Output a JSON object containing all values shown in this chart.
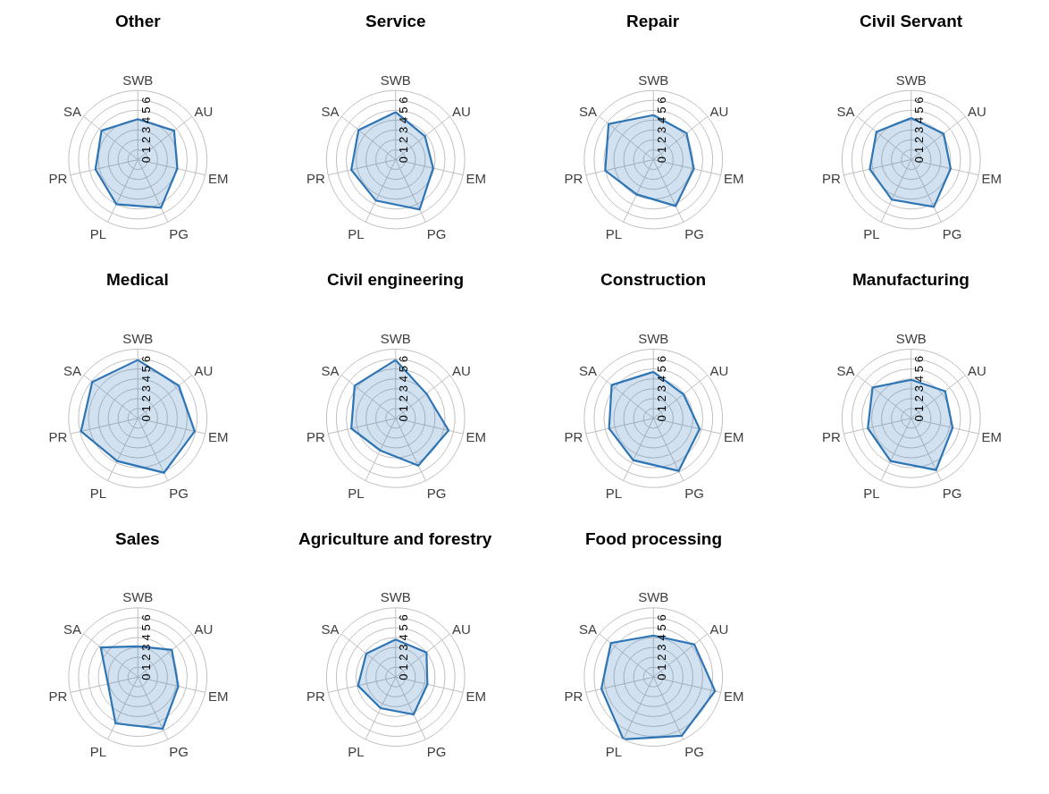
{
  "chart_data": [
    {
      "type": "radar",
      "title": "Other",
      "categories": [
        "SWB",
        "AU",
        "EM",
        "PG",
        "PL",
        "PR",
        "SA"
      ],
      "series": [
        {
          "color": "#2e75b6",
          "values": [
            4.1,
            4.7,
            4.1,
            5.4,
            5.0,
            4.4,
            4.7
          ]
        }
      ],
      "ylim": [
        0,
        7
      ],
      "yticks": [
        0,
        1,
        2,
        3,
        4,
        5,
        6
      ],
      "grid": true
    },
    {
      "type": "radar",
      "title": "Service",
      "categories": [
        "SWB",
        "AU",
        "EM",
        "PG",
        "PL",
        "PR",
        "SA"
      ],
      "series": [
        {
          "color": "#2e75b6",
          "values": [
            4.8,
            3.8,
            3.9,
            5.6,
            4.6,
            4.6,
            4.8
          ]
        }
      ],
      "ylim": [
        0,
        7
      ],
      "yticks": [
        0,
        1,
        2,
        3,
        4,
        5,
        6
      ],
      "grid": true
    },
    {
      "type": "radar",
      "title": "Repair",
      "categories": [
        "SWB",
        "AU",
        "EM",
        "PG",
        "PL",
        "PR",
        "SA"
      ],
      "series": [
        {
          "color": "#2e75b6",
          "values": [
            4.5,
            4.3,
            4.2,
            5.2,
            3.9,
            5.0,
            5.8
          ]
        }
      ],
      "ylim": [
        0,
        7
      ],
      "yticks": [
        0,
        1,
        2,
        3,
        4,
        5,
        6
      ],
      "grid": true
    },
    {
      "type": "radar",
      "title": "Civil Servant",
      "categories": [
        "SWB",
        "AU",
        "EM",
        "PG",
        "PL",
        "PR",
        "SA"
      ],
      "series": [
        {
          "color": "#2e75b6",
          "values": [
            4.2,
            4.2,
            4.1,
            5.3,
            4.5,
            4.3,
            4.5
          ]
        }
      ],
      "ylim": [
        0,
        7
      ],
      "yticks": [
        0,
        1,
        2,
        3,
        4,
        5,
        6
      ],
      "grid": true
    },
    {
      "type": "radar",
      "title": "Medical",
      "categories": [
        "SWB",
        "AU",
        "EM",
        "PG",
        "PL",
        "PR",
        "SA"
      ],
      "series": [
        {
          "color": "#2e75b6",
          "values": [
            5.9,
            5.3,
            5.9,
            6.1,
            4.8,
            5.9,
            5.9
          ]
        }
      ],
      "ylim": [
        0,
        7
      ],
      "yticks": [
        0,
        1,
        2,
        3,
        4,
        5,
        6
      ],
      "grid": true
    },
    {
      "type": "radar",
      "title": "Civil engineering",
      "categories": [
        "SWB",
        "AU",
        "EM",
        "PG",
        "PL",
        "PR",
        "SA"
      ],
      "series": [
        {
          "color": "#2e75b6",
          "values": [
            5.9,
            4.0,
            5.5,
            5.3,
            3.6,
            4.6,
            5.3
          ]
        }
      ],
      "ylim": [
        0,
        7
      ],
      "yticks": [
        0,
        1,
        2,
        3,
        4,
        5,
        6
      ],
      "grid": true
    },
    {
      "type": "radar",
      "title": "Construction",
      "categories": [
        "SWB",
        "AU",
        "EM",
        "PG",
        "PL",
        "PR",
        "SA"
      ],
      "series": [
        {
          "color": "#2e75b6",
          "values": [
            4.7,
            3.9,
            4.8,
            5.9,
            4.7,
            4.6,
            5.4
          ]
        }
      ],
      "ylim": [
        0,
        7
      ],
      "yticks": [
        0,
        1,
        2,
        3,
        4,
        5,
        6
      ],
      "grid": true
    },
    {
      "type": "radar",
      "title": "Manufacturing",
      "categories": [
        "SWB",
        "AU",
        "EM",
        "PG",
        "PL",
        "PR",
        "SA"
      ],
      "series": [
        {
          "color": "#2e75b6",
          "values": [
            3.9,
            4.4,
            4.3,
            5.8,
            4.8,
            4.5,
            5.0
          ]
        }
      ],
      "ylim": [
        0,
        7
      ],
      "yticks": [
        0,
        1,
        2,
        3,
        4,
        5,
        6
      ],
      "grid": true
    },
    {
      "type": "radar",
      "title": "Sales",
      "categories": [
        "SWB",
        "AU",
        "EM",
        "PG",
        "PL",
        "PR",
        "SA"
      ],
      "series": [
        {
          "color": "#2e75b6",
          "values": [
            3.1,
            4.4,
            4.2,
            5.8,
            5.2,
            3.1,
            4.8
          ]
        }
      ],
      "ylim": [
        0,
        7
      ],
      "yticks": [
        0,
        1,
        2,
        3,
        4,
        5,
        6
      ],
      "grid": true
    },
    {
      "type": "radar",
      "title": "Agriculture and forestry",
      "categories": [
        "SWB",
        "AU",
        "EM",
        "PG",
        "PL",
        "PR",
        "SA"
      ],
      "series": [
        {
          "color": "#2e75b6",
          "values": [
            3.8,
            4.0,
            3.3,
            4.2,
            3.5,
            3.9,
            3.8
          ]
        }
      ],
      "ylim": [
        0,
        7
      ],
      "yticks": [
        0,
        1,
        2,
        3,
        4,
        5,
        6
      ],
      "grid": true
    },
    {
      "type": "radar",
      "title": "Food processing",
      "categories": [
        "SWB",
        "AU",
        "EM",
        "PG",
        "PL",
        "PR",
        "SA"
      ],
      "series": [
        {
          "color": "#2e75b6",
          "values": [
            4.2,
            5.3,
            6.4,
            6.6,
            7.0,
            5.4,
            5.5
          ]
        }
      ],
      "ylim": [
        0,
        7
      ],
      "yticks": [
        0,
        1,
        2,
        3,
        4,
        5,
        6
      ],
      "grid": true
    }
  ]
}
